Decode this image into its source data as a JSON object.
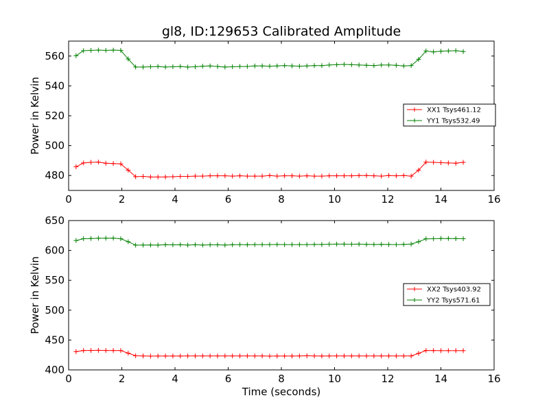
{
  "figure": {
    "title": "gl8, ID:129653 Calibrated Amplitude",
    "xlabel": "Time (seconds)"
  },
  "chart_data": [
    {
      "type": "line",
      "title": "gl8, ID:129653 Calibrated Amplitude",
      "xlabel": "",
      "ylabel": "Power in Kelvin",
      "xlim": [
        0,
        16
      ],
      "ylim": [
        470,
        570
      ],
      "xticks": [
        "0",
        "2",
        "4",
        "6",
        "8",
        "10",
        "12",
        "14",
        "16"
      ],
      "yticks": [
        "480",
        "500",
        "520",
        "540",
        "560"
      ],
      "xtick_values": [
        0,
        2,
        4,
        6,
        8,
        10,
        12,
        14,
        16
      ],
      "ytick_values": [
        480,
        500,
        520,
        540,
        560
      ],
      "grid": false,
      "legend": {
        "position": "right",
        "entries": [
          "XX1 Tsys461.12",
          "YY1 Tsys532.49"
        ]
      },
      "x": [
        0.28,
        0.56,
        0.84,
        1.12,
        1.4,
        1.68,
        1.96,
        2.24,
        2.52,
        2.8,
        3.08,
        3.36,
        3.64,
        3.92,
        4.2,
        4.48,
        4.76,
        5.04,
        5.32,
        5.6,
        5.88,
        6.16,
        6.44,
        6.72,
        7.0,
        7.28,
        7.56,
        7.84,
        8.12,
        8.4,
        8.68,
        8.96,
        9.24,
        9.52,
        9.8,
        10.08,
        10.36,
        10.64,
        10.92,
        11.2,
        11.48,
        11.76,
        12.04,
        12.32,
        12.6,
        12.88,
        13.16,
        13.44,
        13.72,
        14.0,
        14.28,
        14.56,
        14.84
      ],
      "series": [
        {
          "name": "XX1 Tsys461.12",
          "color": "#ff0000",
          "values": [
            485.8,
            488.4,
            488.8,
            489.0,
            488.2,
            488.0,
            487.8,
            483.6,
            479.2,
            479.4,
            479.0,
            479.0,
            479.0,
            479.2,
            479.4,
            479.4,
            479.6,
            479.6,
            479.8,
            479.8,
            479.8,
            479.6,
            479.8,
            479.6,
            479.6,
            479.6,
            480.0,
            479.6,
            479.8,
            479.8,
            479.6,
            479.8,
            479.6,
            479.6,
            479.8,
            479.8,
            479.8,
            479.8,
            480.0,
            480.0,
            479.8,
            479.6,
            480.0,
            479.8,
            480.0,
            479.6,
            483.6,
            489.0,
            488.8,
            488.6,
            488.4,
            488.2,
            488.8
          ]
        },
        {
          "name": "YY1 Tsys532.49",
          "color": "#008000",
          "values": [
            560.2,
            563.6,
            563.8,
            564.0,
            563.8,
            564.0,
            563.8,
            558.0,
            552.6,
            552.6,
            552.8,
            553.0,
            552.6,
            552.8,
            553.0,
            552.6,
            552.8,
            553.2,
            553.4,
            553.0,
            552.6,
            552.8,
            553.0,
            553.0,
            553.4,
            553.4,
            553.2,
            553.4,
            553.6,
            553.4,
            553.2,
            553.4,
            553.6,
            553.6,
            554.0,
            554.2,
            554.4,
            554.2,
            554.0,
            553.8,
            553.6,
            554.0,
            554.0,
            553.8,
            553.4,
            553.6,
            557.8,
            563.4,
            562.8,
            563.2,
            563.4,
            563.6,
            563.0
          ]
        }
      ]
    },
    {
      "type": "line",
      "title": "",
      "xlabel": "Time (seconds)",
      "ylabel": "Power in Kelvin",
      "xlim": [
        0,
        16
      ],
      "ylim": [
        400,
        650
      ],
      "xticks": [
        "0",
        "2",
        "4",
        "6",
        "8",
        "10",
        "12",
        "14",
        "16"
      ],
      "yticks": [
        "400",
        "450",
        "500",
        "550",
        "600",
        "650"
      ],
      "xtick_values": [
        0,
        2,
        4,
        6,
        8,
        10,
        12,
        14,
        16
      ],
      "ytick_values": [
        400,
        450,
        500,
        550,
        600,
        650
      ],
      "grid": false,
      "legend": {
        "position": "right",
        "entries": [
          "XX2 Tsys403.92",
          "YY2 Tsys571.61"
        ]
      },
      "x": [
        0.28,
        0.56,
        0.84,
        1.12,
        1.4,
        1.68,
        1.96,
        2.24,
        2.52,
        2.8,
        3.08,
        3.36,
        3.64,
        3.92,
        4.2,
        4.48,
        4.76,
        5.04,
        5.32,
        5.6,
        5.88,
        6.16,
        6.44,
        6.72,
        7.0,
        7.28,
        7.56,
        7.84,
        8.12,
        8.4,
        8.68,
        8.96,
        9.24,
        9.52,
        9.8,
        10.08,
        10.36,
        10.64,
        10.92,
        11.2,
        11.48,
        11.76,
        12.04,
        12.32,
        12.6,
        12.88,
        13.16,
        13.44,
        13.72,
        14.0,
        14.28,
        14.56,
        14.84
      ],
      "series": [
        {
          "name": "XX2 Tsys403.92",
          "color": "#ff0000",
          "values": [
            430.5,
            432.5,
            432.6,
            432.8,
            432.6,
            432.5,
            432.4,
            428.0,
            423.6,
            423.4,
            423.0,
            423.2,
            423.2,
            423.2,
            423.2,
            423.4,
            423.4,
            423.4,
            423.4,
            423.4,
            423.4,
            423.4,
            423.4,
            423.4,
            423.4,
            423.4,
            423.0,
            423.2,
            423.2,
            423.2,
            423.4,
            423.6,
            423.4,
            423.2,
            423.4,
            423.4,
            423.4,
            423.4,
            423.4,
            423.4,
            423.4,
            423.4,
            423.4,
            423.4,
            423.4,
            423.4,
            427.6,
            432.6,
            432.4,
            432.2,
            432.2,
            432.2,
            432.2
          ]
        },
        {
          "name": "YY2 Tsys571.61",
          "color": "#008000",
          "values": [
            616.6,
            619.6,
            620.0,
            620.4,
            620.4,
            620.6,
            619.6,
            614.6,
            608.8,
            609.0,
            609.2,
            609.0,
            609.6,
            609.4,
            609.6,
            609.0,
            609.6,
            609.0,
            609.4,
            609.4,
            609.0,
            609.6,
            609.8,
            609.6,
            609.8,
            609.8,
            609.8,
            610.0,
            609.8,
            609.8,
            609.8,
            609.8,
            610.0,
            610.0,
            610.4,
            610.6,
            610.6,
            610.4,
            610.6,
            610.2,
            610.0,
            610.2,
            610.0,
            609.8,
            610.2,
            610.6,
            614.6,
            619.4,
            619.6,
            620.0,
            620.0,
            619.8,
            619.6
          ]
        }
      ]
    }
  ]
}
